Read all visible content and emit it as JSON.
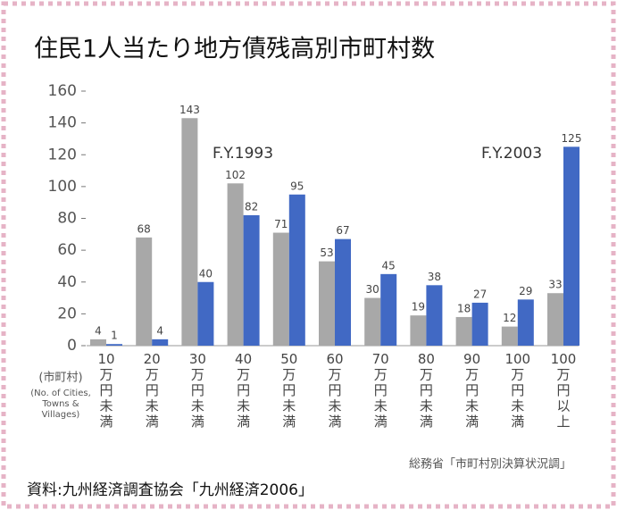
{
  "chart_data": {
    "type": "bar",
    "title": "住民1人当たり地方債残高別市町村数",
    "categories": [
      "10万円未満",
      "20万円未満",
      "30万円未満",
      "40万円未満",
      "50万円未満",
      "60万円未満",
      "70万円未満",
      "80万円未満",
      "90万円未満",
      "100万円未満",
      "100万円以上"
    ],
    "series": [
      {
        "name": "F.Y.1993",
        "color": "#a8a8a8",
        "values": [
          4,
          68,
          143,
          102,
          71,
          53,
          30,
          19,
          18,
          12,
          33
        ]
      },
      {
        "name": "F.Y.2003",
        "color": "#4169c4",
        "values": [
          1,
          4,
          40,
          82,
          95,
          67,
          45,
          38,
          27,
          29,
          125
        ]
      }
    ],
    "ylim": [
      0,
      160
    ],
    "yticks": [
      0,
      20,
      40,
      60,
      80,
      100,
      120,
      140,
      160
    ],
    "y_label": "(市町村)",
    "y_label_en": [
      "(No. of Cities,",
      "Towns &",
      "Villages)"
    ],
    "source": "総務省「市町村別決算状況調」",
    "footer": "資料:九州経済調査協会「九州経済2006」"
  }
}
